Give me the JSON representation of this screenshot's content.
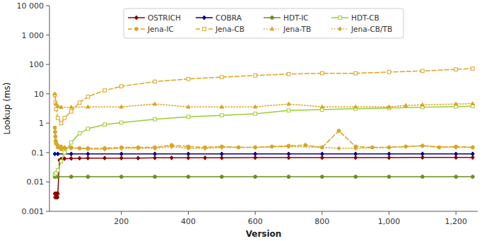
{
  "chart_data": {
    "type": "line",
    "xlabel": "Version",
    "ylabel": "Lookup (ms)",
    "log": "y",
    "grid": false,
    "legend": "top",
    "xlim": [
      -15,
      1265
    ],
    "ylim": [
      0.001,
      10000
    ],
    "xticks": [
      200,
      400,
      600,
      800,
      {
        "value": 1000,
        "label": "1,000"
      },
      {
        "value": 1200,
        "label": "1,200"
      }
    ],
    "yticks": [
      0.001,
      0.01,
      0.1,
      1,
      10,
      100,
      {
        "value": 1000,
        "label": "1 000"
      },
      {
        "value": 10000,
        "label": "10 000"
      }
    ],
    "series": [
      {
        "name": "OSTRICH",
        "color": "#8B0000",
        "marker": "diamond",
        "line_style": "solid",
        "x": [
          1,
          2,
          3,
          4,
          5,
          6,
          7,
          8,
          9,
          10,
          15,
          20,
          30,
          50,
          75,
          100,
          150,
          200,
          250,
          300,
          350,
          400,
          450,
          500,
          600,
          700,
          800,
          900,
          1000,
          1100,
          1200,
          1250
        ],
        "values": [
          0.004,
          0.003,
          0.004,
          0.003,
          0.003,
          0.004,
          0.003,
          0.004,
          0.003,
          0.004,
          0.055,
          0.06,
          0.062,
          0.063,
          0.064,
          0.065,
          0.065,
          0.065,
          0.065,
          0.066,
          0.066,
          0.066,
          0.066,
          0.066,
          0.067,
          0.067,
          0.067,
          0.067,
          0.067,
          0.068,
          0.068,
          0.068
        ]
      },
      {
        "name": "COBRA",
        "color": "#00008B",
        "marker": "diamond",
        "line_style": "solid",
        "x": [
          1,
          10,
          50,
          100,
          200,
          300,
          400,
          500,
          600,
          700,
          800,
          900,
          1000,
          1100,
          1200,
          1250
        ],
        "values": [
          0.09,
          0.09,
          0.09,
          0.09,
          0.09,
          0.09,
          0.09,
          0.09,
          0.09,
          0.09,
          0.09,
          0.09,
          0.09,
          0.09,
          0.09,
          0.09
        ]
      },
      {
        "name": "HDT-IC",
        "color": "#6B8E23",
        "marker": "circle",
        "line_style": "solid",
        "x": [
          1,
          10,
          50,
          100,
          200,
          300,
          400,
          500,
          600,
          700,
          800,
          900,
          1000,
          1100,
          1200,
          1250
        ],
        "values": [
          0.015,
          0.015,
          0.015,
          0.015,
          0.015,
          0.015,
          0.015,
          0.015,
          0.015,
          0.015,
          0.015,
          0.015,
          0.015,
          0.015,
          0.015,
          0.015
        ]
      },
      {
        "name": "HDT-CB",
        "color": "#9ACD32",
        "marker": "square-open",
        "line_style": "solid",
        "x": [
          1,
          5,
          10,
          20,
          30,
          50,
          75,
          100,
          150,
          200,
          300,
          400,
          500,
          600,
          700,
          800,
          900,
          1000,
          1100,
          1200,
          1250
        ],
        "values": [
          0.018,
          0.02,
          0.025,
          0.05,
          0.1,
          0.22,
          0.45,
          0.65,
          0.9,
          1.05,
          1.35,
          1.65,
          1.85,
          2.1,
          2.7,
          2.9,
          3.1,
          3.3,
          3.5,
          3.7,
          3.8
        ]
      },
      {
        "name": "Jena-IC",
        "color": "#DAA520",
        "marker": "circle",
        "line_style": "dashed",
        "x": [
          1,
          2,
          3,
          4,
          5,
          10,
          20,
          30,
          50,
          75,
          100,
          150,
          200,
          250,
          300,
          350,
          400,
          450,
          500,
          550,
          600,
          650,
          700,
          750,
          800,
          850,
          900,
          950,
          1000,
          1050,
          1100,
          1150,
          1200,
          1250
        ],
        "values": [
          0.7,
          0.5,
          0.35,
          0.25,
          0.2,
          0.15,
          0.13,
          0.14,
          0.15,
          0.14,
          0.14,
          0.14,
          0.15,
          0.15,
          0.15,
          0.18,
          0.16,
          0.15,
          0.16,
          0.15,
          0.15,
          0.16,
          0.17,
          0.18,
          0.15,
          0.55,
          0.16,
          0.15,
          0.15,
          0.16,
          0.17,
          0.15,
          0.16,
          0.15
        ]
      },
      {
        "name": "Jena-CB",
        "color": "#DAA520",
        "marker": "square-open",
        "line_style": "dashed",
        "x": [
          1,
          3,
          5,
          10,
          20,
          30,
          50,
          75,
          100,
          150,
          200,
          300,
          400,
          500,
          600,
          700,
          800,
          900,
          1000,
          1100,
          1200,
          1250
        ],
        "values": [
          9.0,
          5.0,
          3.0,
          1.5,
          1.0,
          1.5,
          2.5,
          5.0,
          8.0,
          13.0,
          18.0,
          26.0,
          32.0,
          37.0,
          42.0,
          47.0,
          50.0,
          50.0,
          55.0,
          60.0,
          68.0,
          72.0
        ]
      },
      {
        "name": "Jena-TB",
        "color": "#DAA520",
        "marker": "triangle",
        "line_style": "dotted",
        "x": [
          1,
          5,
          10,
          20,
          50,
          100,
          200,
          300,
          400,
          500,
          600,
          700,
          800,
          900,
          1000,
          1050,
          1100,
          1200,
          1250
        ],
        "values": [
          10.0,
          4.5,
          3.8,
          3.5,
          3.5,
          3.6,
          3.6,
          4.5,
          3.6,
          3.6,
          3.6,
          4.5,
          3.6,
          3.6,
          3.6,
          4.0,
          4.2,
          4.5,
          4.6
        ]
      },
      {
        "name": "Jena-CB/TB",
        "color": "#DAA520",
        "marker": "diamond",
        "line_style": "dotted",
        "x": [
          1,
          2,
          3,
          4,
          5,
          10,
          20,
          30,
          50,
          75,
          100,
          150,
          200,
          250,
          300,
          350,
          400,
          450,
          500,
          600,
          700,
          800,
          850,
          900,
          1000,
          1100,
          1200,
          1250
        ],
        "values": [
          0.5,
          0.35,
          0.25,
          0.22,
          0.2,
          0.18,
          0.16,
          0.15,
          0.14,
          0.14,
          0.13,
          0.13,
          0.14,
          0.14,
          0.14,
          0.16,
          0.14,
          0.14,
          0.15,
          0.15,
          0.16,
          0.15,
          0.14,
          0.14,
          0.15,
          0.17,
          0.15,
          0.15
        ]
      }
    ]
  }
}
